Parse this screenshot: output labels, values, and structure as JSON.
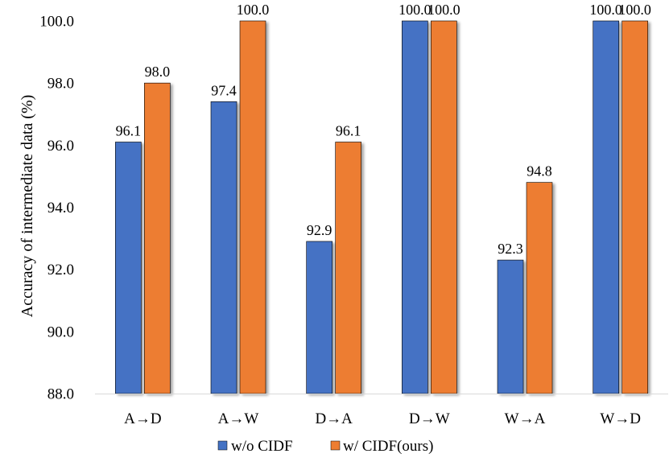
{
  "chart_data": {
    "type": "bar",
    "title": "",
    "xlabel": "",
    "ylabel": "Accuracy of intermediate data (%)",
    "ylim": [
      88.0,
      100.0
    ],
    "yticks": [
      88.0,
      90.0,
      92.0,
      94.0,
      96.0,
      98.0,
      100.0
    ],
    "ytick_labels": [
      "88.0",
      "90.0",
      "92.0",
      "94.0",
      "96.0",
      "98.0",
      "100.0"
    ],
    "grid": false,
    "legend_position": "bottom-center",
    "categories": [
      "A→D",
      "A→W",
      "D→A",
      "D→W",
      "W→A",
      "W→D"
    ],
    "series": [
      {
        "name": "w/o CIDF",
        "color": "#4472C4",
        "values": [
          96.1,
          97.4,
          92.9,
          100.0,
          92.3,
          100.0
        ],
        "labels": [
          "96.1",
          "97.4",
          "92.9",
          "100.0",
          "92.3",
          "100.0"
        ]
      },
      {
        "name": "w/ CIDF(ours)",
        "color": "#ED7D31",
        "values": [
          98.0,
          100.0,
          96.1,
          100.0,
          94.8,
          100.0
        ],
        "labels": [
          "98.0",
          "100.0",
          "96.1",
          "100.0",
          "94.8",
          "100.0"
        ]
      }
    ]
  }
}
